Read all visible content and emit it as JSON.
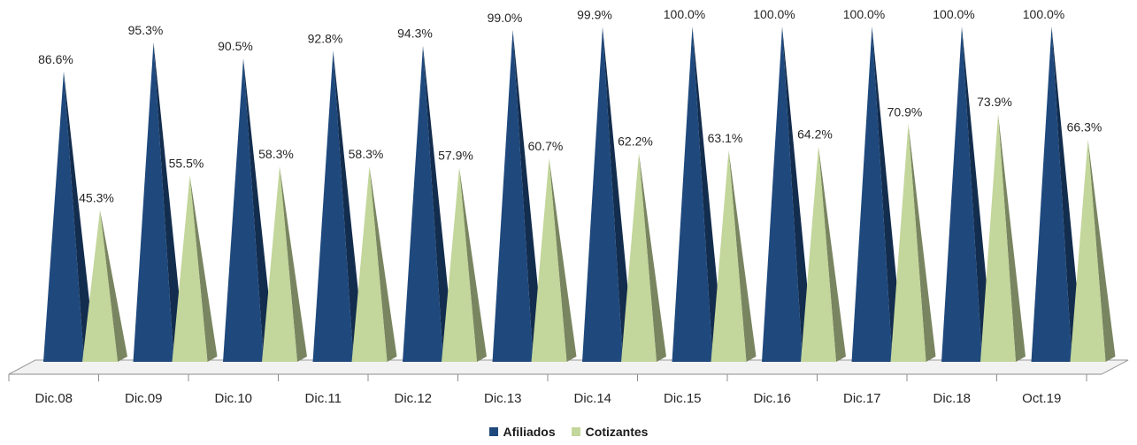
{
  "chart_data": {
    "type": "bar",
    "categories": [
      "Dic.08",
      "Dic.09",
      "Dic.10",
      "Dic.11",
      "Dic.12",
      "Dic.13",
      "Dic.14",
      "Dic.15",
      "Dic.16",
      "Dic.17",
      "Dic.18",
      "Oct.19"
    ],
    "series": [
      {
        "name": "Afiliados",
        "color": "#1f497d",
        "values": [
          86.6,
          95.3,
          90.5,
          92.8,
          94.3,
          99.0,
          99.9,
          100.0,
          100.0,
          100.0,
          100.0,
          100.0
        ],
        "labels": [
          "86.6%",
          "95.3%",
          "90.5%",
          "92.8%",
          "94.3%",
          "99.0%",
          "99.9%",
          "100.0%",
          "100.0%",
          "100.0%",
          "100.0%",
          "100.0%"
        ]
      },
      {
        "name": "Cotizantes",
        "color": "#c3d69b",
        "values": [
          45.3,
          55.5,
          58.3,
          58.3,
          57.9,
          60.7,
          62.2,
          63.1,
          64.2,
          70.9,
          73.9,
          66.3
        ],
        "labels": [
          "45.3%",
          "55.5%",
          "58.3%",
          "58.3%",
          "57.9%",
          "60.7%",
          "62.2%",
          "63.1%",
          "64.2%",
          "70.9%",
          "73.9%",
          "66.3%"
        ]
      }
    ],
    "bar_shape": "3d-pyramid",
    "ylim": [
      0,
      100
    ],
    "grid": false,
    "legend_position": "bottom"
  }
}
